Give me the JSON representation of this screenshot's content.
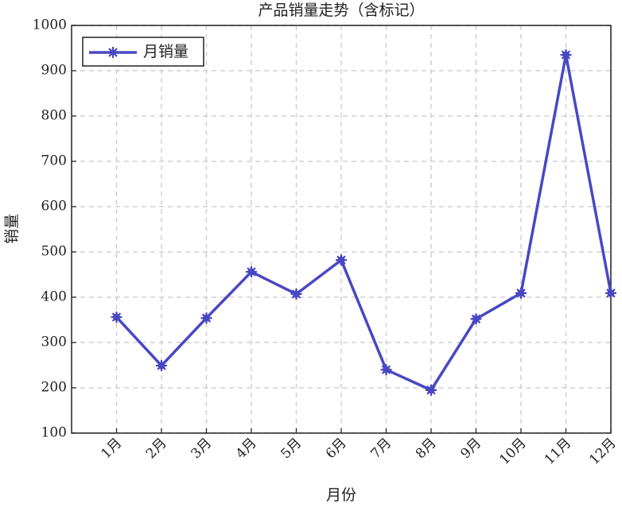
{
  "chart_data": {
    "type": "line",
    "title": "产品销量走势（含标记）",
    "x_label": "月份",
    "y_label": "销量",
    "categories": [
      "1月",
      "2月",
      "3月",
      "4月",
      "5月",
      "6月",
      "7月",
      "8月",
      "9月",
      "10月",
      "11月",
      "12月"
    ],
    "series": [
      {
        "name": "月销量",
        "color": "#4848c4",
        "values": [
          356,
          249,
          354,
          456,
          407,
          482,
          240,
          195,
          352,
          409,
          935,
          409
        ]
      }
    ],
    "ylim": [
      100,
      1000
    ],
    "yticks": [
      100,
      200,
      300,
      400,
      500,
      600,
      700,
      800,
      900,
      1000
    ],
    "grid": true,
    "legend": "upper-left"
  }
}
